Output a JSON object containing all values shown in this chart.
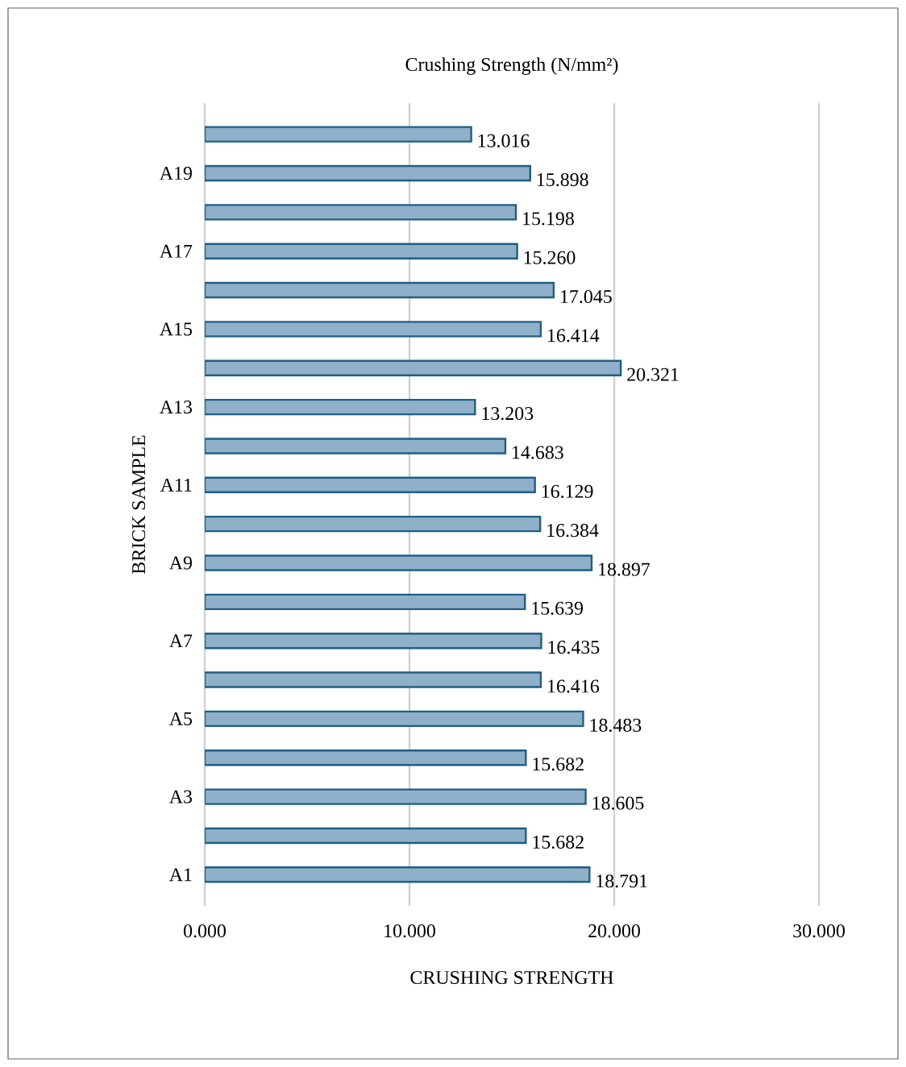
{
  "chart_data": {
    "type": "bar",
    "orientation": "horizontal",
    "title": "Crushing Strength (N/mm²)",
    "xlabel": "CRUSHING STRENGTH",
    "ylabel": "BRICK SAMPLE",
    "categories": [
      null,
      "A19",
      null,
      "A17",
      null,
      "A15",
      null,
      "A13",
      null,
      "A11",
      null,
      "A9",
      null,
      "A7",
      null,
      "A5",
      null,
      "A3",
      null,
      "A1"
    ],
    "values": [
      13.016,
      15.898,
      15.198,
      15.26,
      17.045,
      16.414,
      20.321,
      13.203,
      14.683,
      16.129,
      16.384,
      18.897,
      15.639,
      16.435,
      16.416,
      18.483,
      15.682,
      18.605,
      15.682,
      18.791
    ],
    "value_labels": [
      "13.016",
      "15.898",
      "15.198",
      "15.260",
      "17.045",
      "16.414",
      "20.321",
      "13.203",
      "14.683",
      "16.129",
      "16.384",
      "18.897",
      "15.639",
      "16.435",
      "16.416",
      "18.483",
      "15.682",
      "18.605",
      "15.682",
      "18.791"
    ],
    "color": "#8fb0c8",
    "xlim": [
      0,
      30
    ],
    "xticks": [
      {
        "value": 0,
        "label": "0.000"
      },
      {
        "value": 10,
        "label": "10.000"
      },
      {
        "value": 20,
        "label": "20.000"
      },
      {
        "value": 30,
        "label": "30.000"
      }
    ],
    "grid": "x"
  }
}
